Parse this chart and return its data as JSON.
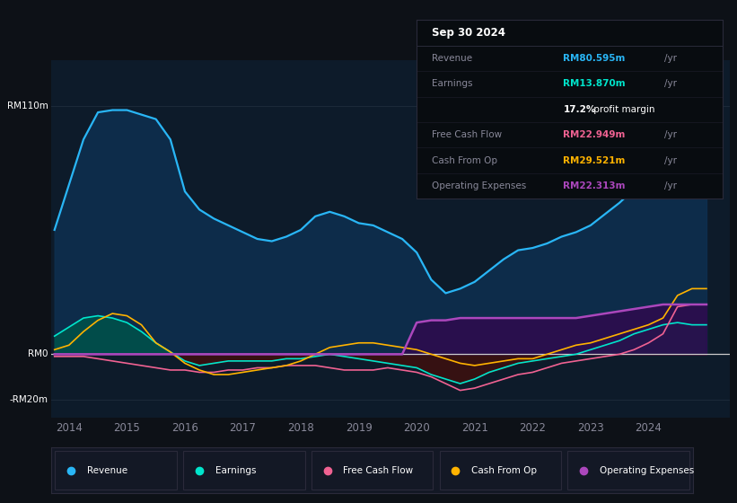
{
  "bg_color": "#0d1117",
  "plot_bg_color": "#0d1b2a",
  "info_box_bg": "#080c10",
  "info_box_border": "#2a2a3a",
  "ylim": [
    -28,
    130
  ],
  "yticks_values": [
    -20,
    0,
    110
  ],
  "ytick_labels": [
    "-RM20m",
    "RM0",
    "RM110m"
  ],
  "xlim_start": 2013.7,
  "xlim_end": 2025.4,
  "xticks": [
    2014,
    2015,
    2016,
    2017,
    2018,
    2019,
    2020,
    2021,
    2022,
    2023,
    2024
  ],
  "grid_color": "#1c2a3a",
  "zero_line_color": "#cccccc",
  "revenue_color": "#29b6f6",
  "earnings_color": "#00e5cc",
  "fcf_color": "#f06292",
  "cashop_color": "#ffb300",
  "opex_color": "#ab47bc",
  "revenue_fill_color": "#0d3050",
  "earnings_fill_neg_color": "#3b1010",
  "opex_fill_color": "#2d0b4e",
  "legend_bg": "#131825",
  "legend_border": "#2a2a3a",
  "info_rows": [
    {
      "label": "Revenue",
      "value": "RM80.595m",
      "color": "#29b6f6"
    },
    {
      "label": "Earnings",
      "value": "RM13.870m",
      "color": "#00e5cc"
    },
    {
      "label": "",
      "value": "17.2%",
      "color": "#ffffff",
      "extra": " profit margin"
    },
    {
      "label": "Free Cash Flow",
      "value": "RM22.949m",
      "color": "#f06292"
    },
    {
      "label": "Cash From Op",
      "value": "RM29.521m",
      "color": "#ffb300"
    },
    {
      "label": "Operating Expenses",
      "value": "RM22.313m",
      "color": "#ab47bc"
    }
  ],
  "legend_items": [
    {
      "label": "Revenue",
      "color": "#29b6f6"
    },
    {
      "label": "Earnings",
      "color": "#00e5cc"
    },
    {
      "label": "Free Cash Flow",
      "color": "#f06292"
    },
    {
      "label": "Cash From Op",
      "color": "#ffb300"
    },
    {
      "label": "Operating Expenses",
      "color": "#ab47bc"
    }
  ],
  "years": [
    2013.75,
    2014.0,
    2014.25,
    2014.5,
    2014.75,
    2015.0,
    2015.25,
    2015.5,
    2015.75,
    2016.0,
    2016.25,
    2016.5,
    2016.75,
    2017.0,
    2017.25,
    2017.5,
    2017.75,
    2018.0,
    2018.25,
    2018.5,
    2018.75,
    2019.0,
    2019.25,
    2019.5,
    2019.75,
    2020.0,
    2020.25,
    2020.5,
    2020.75,
    2021.0,
    2021.25,
    2021.5,
    2021.75,
    2022.0,
    2022.25,
    2022.5,
    2022.75,
    2023.0,
    2023.25,
    2023.5,
    2023.75,
    2024.0,
    2024.25,
    2024.5,
    2024.75,
    2025.0
  ],
  "revenue": [
    55,
    75,
    95,
    107,
    108,
    108,
    106,
    104,
    95,
    72,
    64,
    60,
    57,
    54,
    51,
    50,
    52,
    55,
    61,
    63,
    61,
    58,
    57,
    54,
    51,
    45,
    33,
    27,
    29,
    32,
    37,
    42,
    46,
    47,
    49,
    52,
    54,
    57,
    62,
    67,
    73,
    78,
    90,
    96,
    87,
    82
  ],
  "earnings": [
    8,
    12,
    16,
    17,
    16,
    14,
    10,
    5,
    1,
    -3,
    -5,
    -4,
    -3,
    -3,
    -3,
    -3,
    -2,
    -2,
    -1,
    0,
    -1,
    -2,
    -3,
    -4,
    -5,
    -6,
    -9,
    -11,
    -13,
    -11,
    -8,
    -6,
    -4,
    -3,
    -2,
    -1,
    0,
    2,
    4,
    6,
    9,
    11,
    13,
    14,
    13,
    13
  ],
  "fcf": [
    -1,
    -1,
    -1,
    -2,
    -3,
    -4,
    -5,
    -6,
    -7,
    -7,
    -8,
    -8,
    -7,
    -7,
    -6,
    -6,
    -5,
    -5,
    -5,
    -6,
    -7,
    -7,
    -7,
    -6,
    -7,
    -8,
    -10,
    -13,
    -16,
    -15,
    -13,
    -11,
    -9,
    -8,
    -6,
    -4,
    -3,
    -2,
    -1,
    0,
    2,
    5,
    9,
    21,
    22,
    22
  ],
  "cashop": [
    2,
    4,
    10,
    15,
    18,
    17,
    13,
    5,
    1,
    -4,
    -7,
    -9,
    -9,
    -8,
    -7,
    -6,
    -5,
    -3,
    0,
    3,
    4,
    5,
    5,
    4,
    3,
    2,
    0,
    -2,
    -4,
    -5,
    -4,
    -3,
    -2,
    -2,
    0,
    2,
    4,
    5,
    7,
    9,
    11,
    13,
    16,
    26,
    29,
    29
  ],
  "opex": [
    0,
    0,
    0,
    0,
    0,
    0,
    0,
    0,
    0,
    0,
    0,
    0,
    0,
    0,
    0,
    0,
    0,
    0,
    0,
    0,
    0,
    0,
    0,
    0,
    0,
    14,
    15,
    15,
    16,
    16,
    16,
    16,
    16,
    16,
    16,
    16,
    16,
    17,
    18,
    19,
    20,
    21,
    22,
    22,
    22,
    22
  ]
}
